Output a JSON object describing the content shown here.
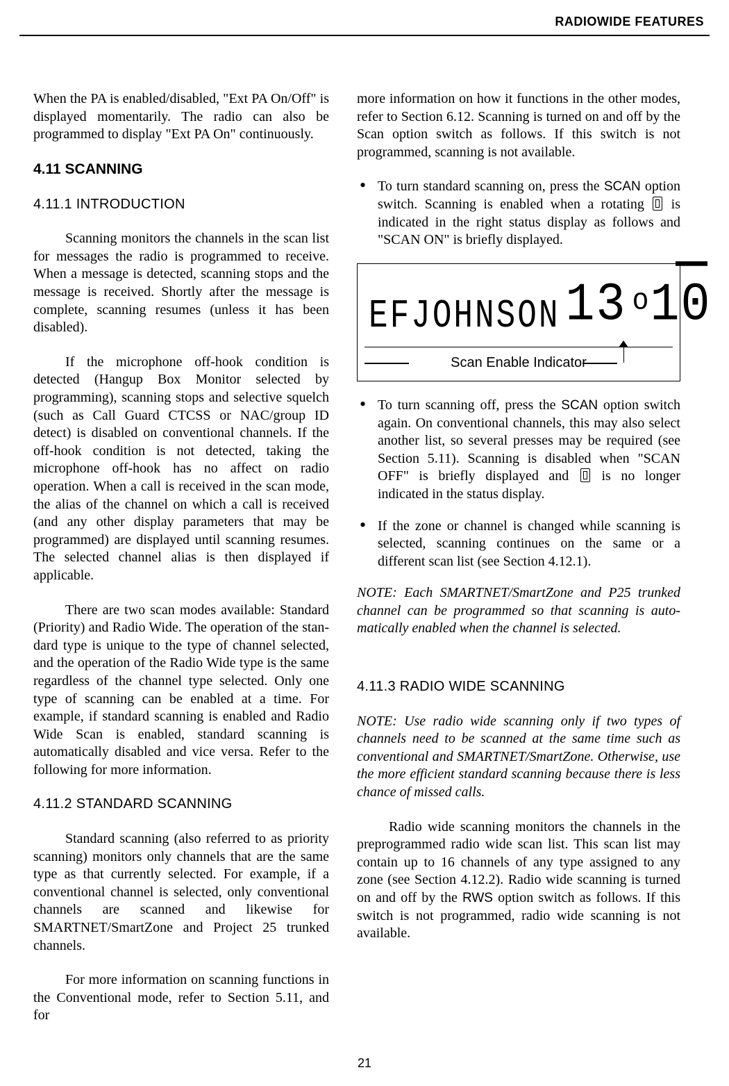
{
  "running_head": "RADIOWIDE FEATURES",
  "page_number": "21",
  "left": {
    "intro_para": "When the PA is enabled/disabled, \"Ext PA On/Off\" is displayed momentarily. The radio can also be programmed to display \"Ext PA On\" continuously.",
    "h_scanning": "4.11 SCANNING",
    "h_intro": "4.11.1  INTRODUCTION",
    "p1": "Scanning monitors the channels in the scan list for messages the radio is programmed to receive. When a message is detected, scanning stops and the message is received. Shortly after the message is complete, scanning resumes (unless it has been disabled).",
    "p2": "If the microphone off-hook condition is detected (Hangup Box Monitor selected by programming), scanning stops and selective squelch (such as Call Guard CTCSS or NAC/group ID detect) is disabled on conventional channels. If the off-hook condition is not detected, taking the microphone off-hook has no affect on radio operation. When a call is received in the scan mode, the alias of the channel on which a call is received (and any other display parameters that may be programmed) are displayed until scanning resumes. The selected channel alias is then displayed if applicable.",
    "p3": "There are two scan modes available: Standard (Priority) and Radio Wide. The operation of the stan­dard type is unique to the type of channel selected, and the operation of the Radio Wide type is the same regardless of the channel type selected. Only one type of scanning can be enabled at a time. For example, if standard scanning is enabled and Radio Wide Scan is enabled, standard scanning is automatically disabled and vice versa. Refer to the following for more information.",
    "h_std": "4.11.2  STANDARD SCANNING",
    "p4": "Standard scanning (also referred to as priority scanning) monitors only channels that are the same type as that currently selected. For example, if a conventional channel is selected, only conventional channels are scanned and likewise for SMARTNET/SmartZone and Project 25 trunked channels.",
    "p5": "For more information on scanning functions in the Conventional mode, refer to Section 5.11, and for"
  },
  "right": {
    "p_top": "more information on how it functions in the other modes, refer to Section 6.12. Scanning is turned on and off by the Scan option switch as follows. If this switch is not programmed, scanning is not available.",
    "b1_a": "To turn standard scanning on, press the ",
    "b1_scan": "SCAN",
    "b1_b": " option switch. Scanning is enabled when a rotating ",
    "b1_c": " is indicated in the right status display as follows and \"SCAN ON\" is briefly displayed.",
    "lcd_text": "EFJOHNSON",
    "lcd_num1": "13",
    "lcd_small": "o",
    "lcd_num2": "10",
    "lcd_caption": "Scan Enable Indicator",
    "b2_a": "To turn scanning off, press the ",
    "b2_scan": "SCAN",
    "b2_b": " option switch again. On conventional channels, this may also select another list, so several presses may be required (see Section 5.11). Scanning is disabled when \"SCAN OFF\" is briefly displayed and ",
    "b2_c": " is no longer indicated in the status display.",
    "b3": "If the zone or channel is changed while scanning is selected, scanning continues on the same or a different scan list (see Section 4.12.1).",
    "note1": "NOTE: Each SMARTNET/SmartZone and P25 trunked channel can be programmed so that scanning is auto­matically enabled when the channel is selected.",
    "h_rws": "4.11.3  RADIO WIDE SCANNING",
    "note2": "NOTE: Use radio wide scanning only if two types of channels need to be scanned at the same time such as conventional and SMARTNET/SmartZone. Otherwise, use the more efficient standard scanning because there is less chance of missed calls.",
    "p_rws_a": "Radio wide scanning monitors the channels in the preprogrammed radio wide scan list. This scan list may contain up to 16 channels of any type assigned to any zone (see Section 4.12.2). Radio wide scanning is turned on and off by the ",
    "p_rws_label": "RWS",
    "p_rws_b": " option switch as follows. If this switch is not programmed, radio wide scanning is not available."
  },
  "colors": {
    "text": "#000000",
    "background": "#ffffff",
    "rule": "#000000"
  },
  "typography": {
    "body_font": "Times New Roman",
    "heading_font": "Arial",
    "body_size_pt": 11,
    "heading_size_pt": 11.5
  }
}
